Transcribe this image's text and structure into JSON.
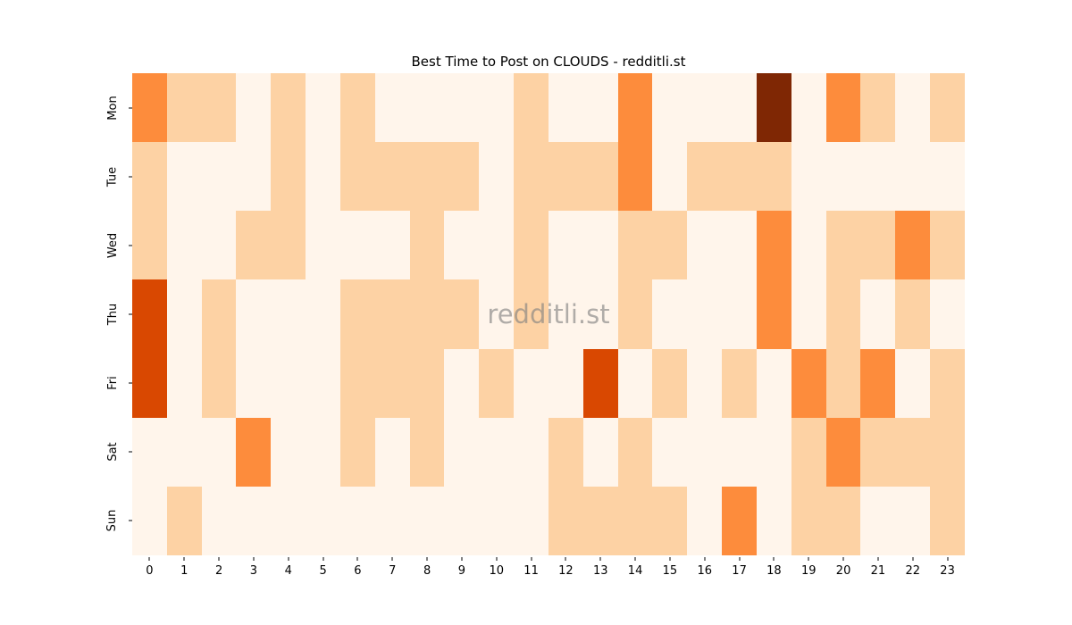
{
  "title": "Best Time to Post on CLOUDS - redditli.st",
  "watermark": "redditli.st",
  "chart_data": {
    "type": "heatmap",
    "title": "Best Time to Post on CLOUDS - redditli.st",
    "xlabel": "",
    "ylabel": "",
    "x_labels": [
      "0",
      "1",
      "2",
      "3",
      "4",
      "5",
      "6",
      "7",
      "8",
      "9",
      "10",
      "11",
      "12",
      "13",
      "14",
      "15",
      "16",
      "17",
      "18",
      "19",
      "20",
      "21",
      "22",
      "23"
    ],
    "y_labels": [
      "Mon",
      "Tue",
      "Wed",
      "Thu",
      "Fri",
      "Sat",
      "Sun"
    ],
    "values": [
      [
        2,
        1,
        1,
        0,
        1,
        0,
        1,
        0,
        0,
        0,
        0,
        1,
        0,
        0,
        2,
        0,
        0,
        0,
        4,
        0,
        2,
        1,
        0,
        1
      ],
      [
        1,
        0,
        0,
        0,
        1,
        0,
        1,
        1,
        1,
        1,
        0,
        1,
        1,
        1,
        2,
        0,
        1,
        1,
        1,
        0,
        0,
        0,
        0,
        0
      ],
      [
        1,
        0,
        0,
        1,
        1,
        0,
        0,
        0,
        1,
        0,
        0,
        1,
        0,
        0,
        1,
        1,
        0,
        0,
        2,
        0,
        1,
        1,
        2,
        1
      ],
      [
        3,
        0,
        1,
        0,
        0,
        0,
        1,
        1,
        1,
        1,
        0,
        1,
        0,
        0,
        1,
        0,
        0,
        0,
        2,
        0,
        1,
        0,
        1,
        0
      ],
      [
        3,
        0,
        1,
        0,
        0,
        0,
        1,
        1,
        1,
        0,
        1,
        0,
        0,
        3,
        0,
        1,
        0,
        1,
        0,
        2,
        1,
        2,
        0,
        1
      ],
      [
        0,
        0,
        0,
        2,
        0,
        0,
        1,
        0,
        1,
        0,
        0,
        0,
        1,
        0,
        1,
        0,
        0,
        0,
        0,
        1,
        2,
        1,
        1,
        1
      ],
      [
        0,
        1,
        0,
        0,
        0,
        0,
        0,
        0,
        0,
        0,
        0,
        0,
        1,
        1,
        1,
        1,
        0,
        2,
        0,
        1,
        1,
        0,
        0,
        1
      ]
    ],
    "value_range": [
      0,
      4
    ],
    "colormap": "Oranges",
    "colors": {
      "0": "#fff5eb",
      "1": "#fdd2a4",
      "2": "#fd8c3c",
      "3": "#d94801",
      "4": "#7f2704"
    },
    "grid": false,
    "legend": "none"
  }
}
